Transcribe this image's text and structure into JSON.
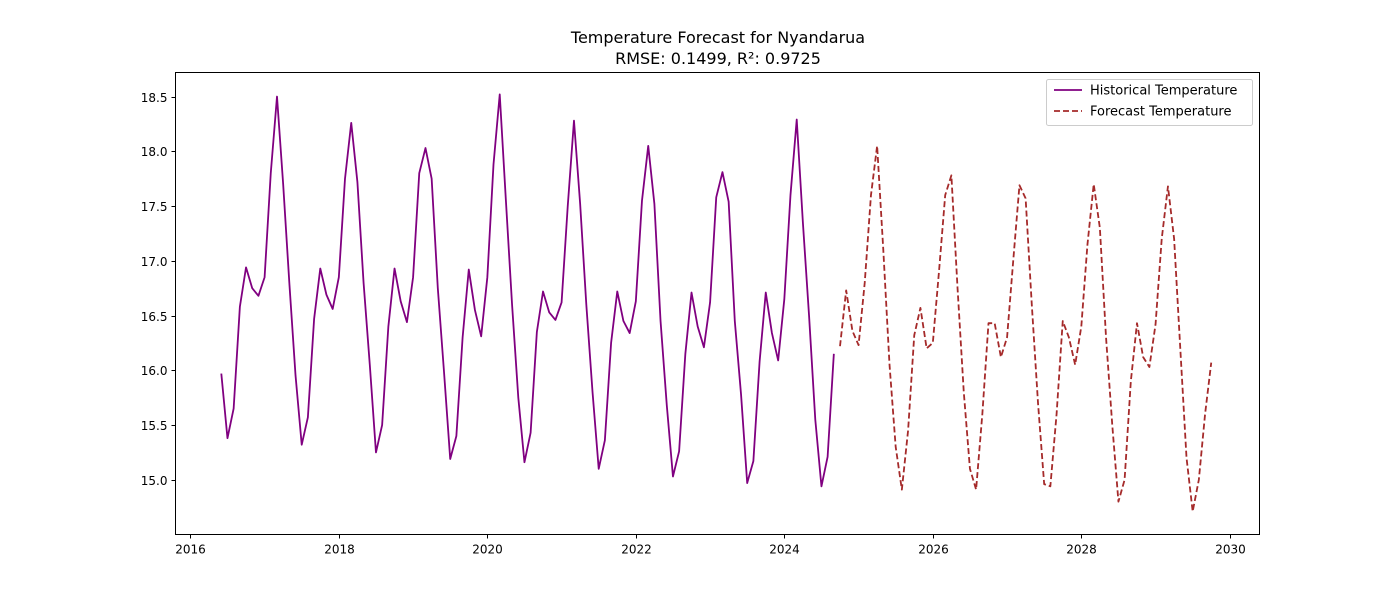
{
  "chart_data": {
    "type": "line",
    "title": "Temperature Forecast for Nyandarua",
    "subtitle": "RMSE: 0.1499, R²: 0.9725",
    "xlabel": "",
    "ylabel": "",
    "xlim": [
      2015.8,
      2030.4
    ],
    "ylim": [
      14.5,
      18.72
    ],
    "x_ticks": [
      2016,
      2018,
      2020,
      2022,
      2024,
      2026,
      2028,
      2030
    ],
    "y_ticks": [
      15.0,
      15.5,
      16.0,
      16.5,
      17.0,
      17.5,
      18.0,
      18.5
    ],
    "x_tick_labels": [
      "2016",
      "2018",
      "2020",
      "2022",
      "2024",
      "2026",
      "2028",
      "2030"
    ],
    "y_tick_labels": [
      "15.0",
      "15.5",
      "16.0",
      "16.5",
      "17.0",
      "17.5",
      "18.0",
      "18.5"
    ],
    "grid": false,
    "legend_position": "upper right",
    "series": [
      {
        "name": "Historical Temperature",
        "color": "#800080",
        "style": "solid",
        "x": [
          2016.417,
          2016.5,
          2016.583,
          2016.667,
          2016.75,
          2016.833,
          2016.917,
          2017.0,
          2017.083,
          2017.167,
          2017.25,
          2017.333,
          2017.417,
          2017.5,
          2017.583,
          2017.667,
          2017.75,
          2017.833,
          2017.917,
          2018.0,
          2018.083,
          2018.167,
          2018.25,
          2018.333,
          2018.417,
          2018.5,
          2018.583,
          2018.667,
          2018.75,
          2018.833,
          2018.917,
          2019.0,
          2019.083,
          2019.167,
          2019.25,
          2019.333,
          2019.417,
          2019.5,
          2019.583,
          2019.667,
          2019.75,
          2019.833,
          2019.917,
          2020.0,
          2020.083,
          2020.167,
          2020.25,
          2020.333,
          2020.417,
          2020.5,
          2020.583,
          2020.667,
          2020.75,
          2020.833,
          2020.917,
          2021.0,
          2021.083,
          2021.167,
          2021.25,
          2021.333,
          2021.417,
          2021.5,
          2021.583,
          2021.667,
          2021.75,
          2021.833,
          2021.917,
          2022.0,
          2022.083,
          2022.167,
          2022.25,
          2022.333,
          2022.417,
          2022.5,
          2022.583,
          2022.667,
          2022.75,
          2022.833,
          2022.917,
          2023.0,
          2023.083,
          2023.167,
          2023.25,
          2023.333,
          2023.417,
          2023.5,
          2023.583,
          2023.667,
          2023.75,
          2023.833,
          2023.917,
          2024.0,
          2024.083,
          2024.167,
          2024.25,
          2024.333,
          2024.417,
          2024.5,
          2024.583,
          2024.667
        ],
        "y": [
          15.97,
          15.38,
          15.65,
          16.58,
          16.94,
          16.75,
          16.68,
          16.85,
          17.8,
          18.5,
          17.7,
          16.8,
          15.95,
          15.32,
          15.57,
          16.47,
          16.93,
          16.69,
          16.56,
          16.85,
          17.75,
          18.26,
          17.72,
          16.8,
          16.05,
          15.25,
          15.5,
          16.4,
          16.93,
          16.63,
          16.44,
          16.85,
          17.8,
          18.03,
          17.75,
          16.75,
          15.98,
          15.19,
          15.4,
          16.3,
          16.92,
          16.55,
          16.31,
          16.85,
          17.88,
          18.52,
          17.55,
          16.6,
          15.75,
          15.16,
          15.43,
          16.35,
          16.72,
          16.53,
          16.46,
          16.62,
          17.5,
          18.28,
          17.52,
          16.6,
          15.8,
          15.1,
          15.36,
          16.25,
          16.72,
          16.45,
          16.34,
          16.63,
          17.55,
          18.05,
          17.52,
          16.45,
          15.68,
          15.03,
          15.26,
          16.15,
          16.71,
          16.4,
          16.21,
          16.62,
          17.58,
          17.81,
          17.54,
          16.45,
          15.78,
          14.97,
          15.17,
          16.08,
          16.71,
          16.34,
          16.09,
          16.65,
          17.6,
          18.29,
          17.35,
          16.5,
          15.55,
          14.94,
          15.21,
          16.15
        ]
      },
      {
        "name": "Forecast Temperature",
        "color": "#a52a2a",
        "style": "dashed",
        "x": [
          2024.75,
          2024.833,
          2024.917,
          2025.0,
          2025.083,
          2025.167,
          2025.25,
          2025.333,
          2025.417,
          2025.5,
          2025.583,
          2025.667,
          2025.75,
          2025.833,
          2025.917,
          2026.0,
          2026.083,
          2026.167,
          2026.25,
          2026.333,
          2026.417,
          2026.5,
          2026.583,
          2026.667,
          2026.75,
          2026.833,
          2026.917,
          2027.0,
          2027.083,
          2027.167,
          2027.25,
          2027.333,
          2027.417,
          2027.5,
          2027.583,
          2027.667,
          2027.75,
          2027.833,
          2027.917,
          2028.0,
          2028.083,
          2028.167,
          2028.25,
          2028.333,
          2028.417,
          2028.5,
          2028.583,
          2028.667,
          2028.75,
          2028.833,
          2028.917,
          2029.0,
          2029.083,
          2029.167,
          2029.25,
          2029.333,
          2029.417,
          2029.5,
          2029.583,
          2029.667,
          2029.75
        ],
        "y": [
          16.22,
          16.73,
          16.36,
          16.23,
          16.8,
          17.6,
          18.05,
          17.1,
          16.05,
          15.3,
          14.91,
          15.45,
          16.32,
          16.57,
          16.2,
          16.25,
          16.9,
          17.6,
          17.78,
          16.75,
          15.8,
          15.1,
          14.91,
          15.6,
          16.43,
          16.43,
          16.12,
          16.3,
          17.0,
          17.69,
          17.57,
          16.6,
          15.7,
          14.96,
          14.94,
          15.6,
          16.45,
          16.3,
          16.05,
          16.4,
          17.15,
          17.7,
          17.3,
          16.3,
          15.5,
          14.8,
          15.0,
          15.9,
          16.43,
          16.12,
          16.03,
          16.42,
          17.2,
          17.68,
          17.2,
          16.2,
          15.2,
          14.71,
          15.0,
          15.6,
          16.07
        ]
      }
    ]
  }
}
